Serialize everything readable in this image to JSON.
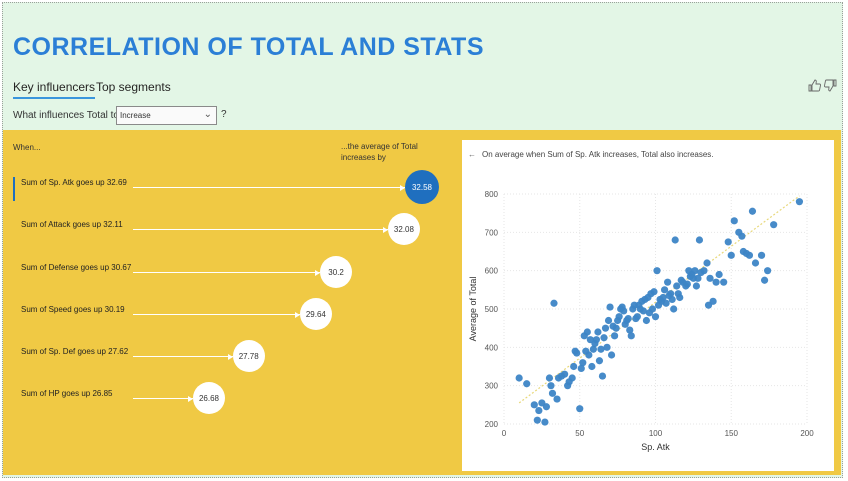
{
  "header": {
    "title": "CORRELATION OF TOTAL AND STATS"
  },
  "tabs": [
    {
      "label": "Key influencers",
      "active": true
    },
    {
      "label": "Top segments",
      "active": false
    }
  ],
  "feedback_icons": [
    "thumbs-up-icon",
    "thumbs-down-icon"
  ],
  "question": {
    "prefix": "What influences Total to",
    "selected": "Increase",
    "suffix": "?"
  },
  "columns": {
    "when": "When...",
    "average": "...the average of Total increases by"
  },
  "influencers": [
    {
      "label": "Sum of Sp. Atk goes up 32.69",
      "value": "32.58",
      "selected": true
    },
    {
      "label": "Sum of Attack goes up 32.11",
      "value": "32.08",
      "selected": false
    },
    {
      "label": "Sum of Defense goes up 30.67",
      "value": "30.2",
      "selected": false
    },
    {
      "label": "Sum of Speed goes up 30.19",
      "value": "29.64",
      "selected": false
    },
    {
      "label": "Sum of Sp. Def goes up 27.62",
      "value": "27.78",
      "selected": false
    },
    {
      "label": "Sum of HP goes up 26.85",
      "value": "26.68",
      "selected": false
    }
  ],
  "detail": {
    "note": "On average when Sum of Sp. Atk increases, Total also increases."
  },
  "colors": {
    "accent": "#2b7fd6",
    "panel": "#f0c944",
    "selected_bubble": "#1f6fbf",
    "dot": "#3d85c6",
    "trend": "#e8d87a"
  },
  "chart_data": {
    "type": "scatter",
    "xlabel": "Sp. Atk",
    "ylabel": "Average of Total",
    "xlim": [
      0,
      200
    ],
    "ylim": [
      200,
      800
    ],
    "xticks": [
      0,
      50,
      100,
      150,
      200
    ],
    "yticks": [
      200,
      300,
      400,
      500,
      600,
      700,
      800
    ],
    "grid": true,
    "trendline": [
      [
        10,
        255
      ],
      [
        195,
        795
      ]
    ],
    "points": [
      [
        10,
        320
      ],
      [
        15,
        305
      ],
      [
        20,
        250
      ],
      [
        22,
        210
      ],
      [
        23,
        235
      ],
      [
        25,
        255
      ],
      [
        27,
        205
      ],
      [
        28,
        245
      ],
      [
        30,
        320
      ],
      [
        31,
        300
      ],
      [
        32,
        280
      ],
      [
        33,
        515
      ],
      [
        35,
        265
      ],
      [
        36,
        320
      ],
      [
        38,
        325
      ],
      [
        40,
        330
      ],
      [
        42,
        300
      ],
      [
        43,
        310
      ],
      [
        45,
        320
      ],
      [
        46,
        350
      ],
      [
        47,
        390
      ],
      [
        48,
        385
      ],
      [
        50,
        240
      ],
      [
        51,
        345
      ],
      [
        52,
        360
      ],
      [
        53,
        430
      ],
      [
        54,
        390
      ],
      [
        55,
        440
      ],
      [
        56,
        380
      ],
      [
        57,
        420
      ],
      [
        58,
        350
      ],
      [
        59,
        395
      ],
      [
        60,
        410
      ],
      [
        61,
        420
      ],
      [
        62,
        440
      ],
      [
        63,
        365
      ],
      [
        64,
        395
      ],
      [
        65,
        325
      ],
      [
        66,
        425
      ],
      [
        67,
        450
      ],
      [
        68,
        400
      ],
      [
        69,
        470
      ],
      [
        70,
        505
      ],
      [
        71,
        380
      ],
      [
        72,
        455
      ],
      [
        73,
        430
      ],
      [
        74,
        450
      ],
      [
        75,
        470
      ],
      [
        76,
        480
      ],
      [
        77,
        500
      ],
      [
        78,
        505
      ],
      [
        79,
        495
      ],
      [
        80,
        460
      ],
      [
        81,
        470
      ],
      [
        82,
        475
      ],
      [
        83,
        445
      ],
      [
        84,
        430
      ],
      [
        85,
        500
      ],
      [
        86,
        510
      ],
      [
        87,
        475
      ],
      [
        88,
        480
      ],
      [
        89,
        510
      ],
      [
        90,
        500
      ],
      [
        91,
        520
      ],
      [
        92,
        495
      ],
      [
        93,
        525
      ],
      [
        94,
        470
      ],
      [
        95,
        530
      ],
      [
        96,
        490
      ],
      [
        97,
        540
      ],
      [
        98,
        500
      ],
      [
        99,
        545
      ],
      [
        100,
        480
      ],
      [
        101,
        600
      ],
      [
        102,
        510
      ],
      [
        103,
        525
      ],
      [
        104,
        520
      ],
      [
        105,
        530
      ],
      [
        106,
        550
      ],
      [
        107,
        515
      ],
      [
        108,
        570
      ],
      [
        109,
        535
      ],
      [
        110,
        540
      ],
      [
        111,
        525
      ],
      [
        112,
        500
      ],
      [
        113,
        680
      ],
      [
        114,
        560
      ],
      [
        115,
        540
      ],
      [
        116,
        530
      ],
      [
        117,
        575
      ],
      [
        118,
        570
      ],
      [
        120,
        560
      ],
      [
        121,
        565
      ],
      [
        122,
        600
      ],
      [
        123,
        585
      ],
      [
        124,
        590
      ],
      [
        125,
        580
      ],
      [
        126,
        600
      ],
      [
        127,
        560
      ],
      [
        128,
        580
      ],
      [
        129,
        680
      ],
      [
        130,
        595
      ],
      [
        132,
        600
      ],
      [
        134,
        620
      ],
      [
        135,
        510
      ],
      [
        136,
        580
      ],
      [
        138,
        520
      ],
      [
        140,
        570
      ],
      [
        142,
        590
      ],
      [
        145,
        570
      ],
      [
        148,
        675
      ],
      [
        150,
        640
      ],
      [
        152,
        730
      ],
      [
        155,
        700
      ],
      [
        157,
        690
      ],
      [
        158,
        650
      ],
      [
        160,
        645
      ],
      [
        162,
        640
      ],
      [
        164,
        755
      ],
      [
        166,
        620
      ],
      [
        170,
        640
      ],
      [
        172,
        575
      ],
      [
        174,
        600
      ],
      [
        178,
        720
      ],
      [
        195,
        780
      ]
    ]
  }
}
